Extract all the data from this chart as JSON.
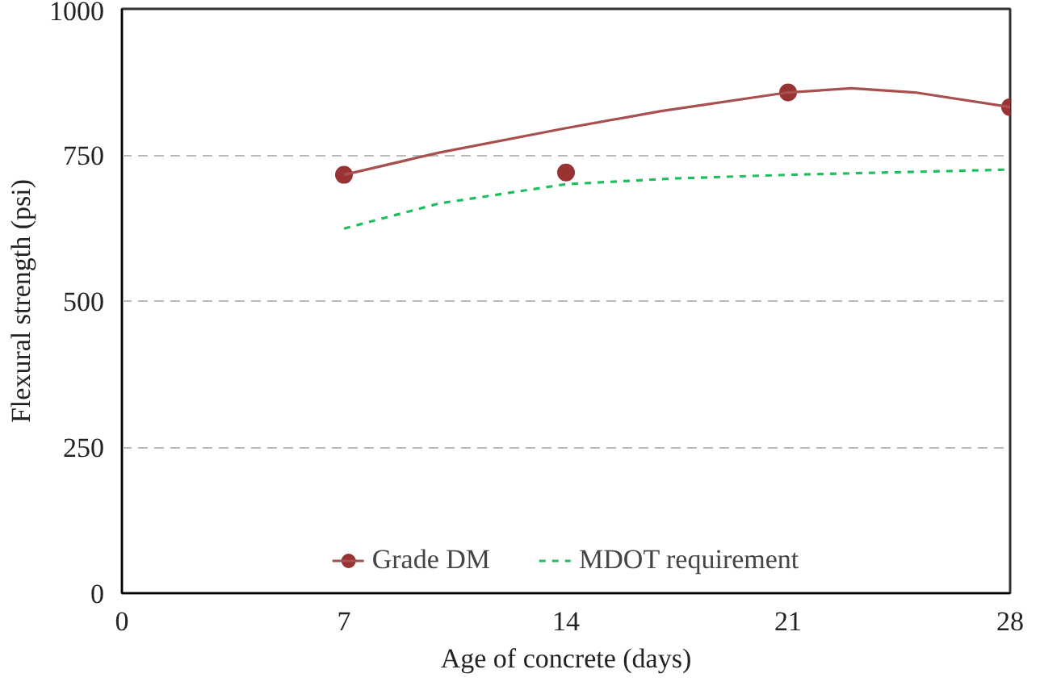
{
  "chart_data": {
    "type": "line",
    "xlabel": "Age of concrete (days)",
    "ylabel": "Flexural strength (psi)",
    "xlim": [
      0,
      28
    ],
    "xticks": [
      0,
      7,
      14,
      21,
      28
    ],
    "ylim": [
      0,
      1000
    ],
    "yticks": [
      0,
      250,
      500,
      750,
      1000
    ],
    "grid": "y",
    "legend": "bottom",
    "series": [
      {
        "name": "Grade DM",
        "type": "scatter",
        "color": "#993333",
        "marker": "circle",
        "x": [
          7,
          14,
          21,
          28
        ],
        "values": [
          716,
          720,
          857,
          832
        ]
      },
      {
        "color": "#a85050",
        "line_style": "solid",
        "x": [
          7,
          10,
          14,
          17,
          21,
          23,
          25,
          28
        ],
        "values": [
          716,
          754,
          796,
          825,
          857,
          864,
          857,
          832
        ]
      },
      {
        "name": "MDOT requirement",
        "color": "#1fbf5f",
        "line_style": "dashed",
        "x": [
          7,
          10,
          14,
          17.5,
          21,
          28
        ],
        "values": [
          624,
          667,
          700,
          710,
          716,
          725
        ]
      }
    ]
  }
}
